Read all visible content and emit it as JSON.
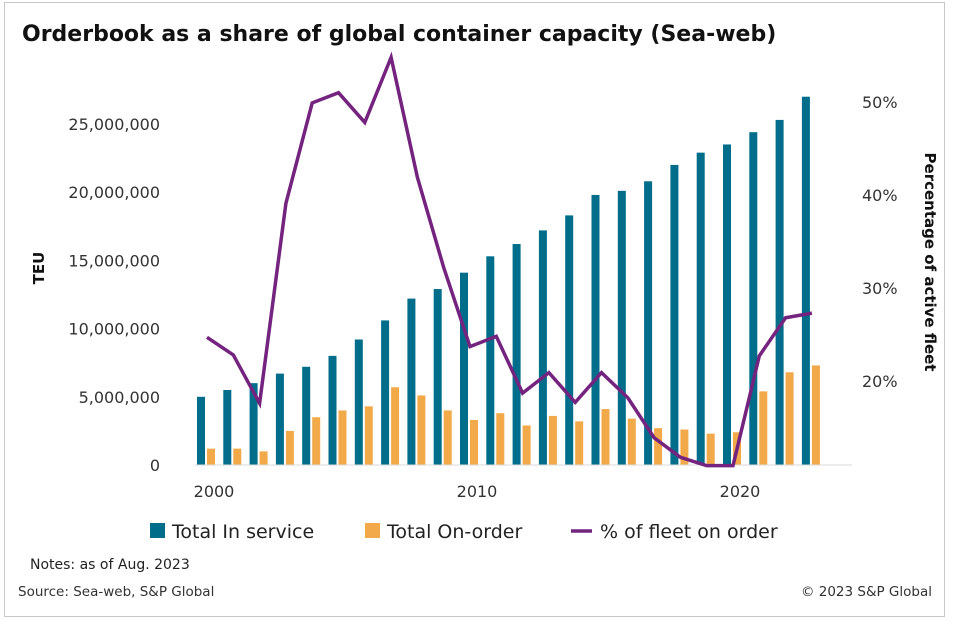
{
  "colors": {
    "in_service": "#006e8a",
    "on_order": "#f2a94a",
    "pct_line": "#74237f"
  },
  "notes": "Notes: as of Aug. 2023",
  "source": "Source: Sea-web, S&P Global",
  "copyright": "© 2023 S&P Global",
  "chart_data": {
    "type": "bar",
    "title": "Orderbook as a share of global container capacity (Sea-web)",
    "xlabel": "",
    "ylabel": "TEU",
    "y2label": "Percentage of active fleet",
    "ylim": [
      0,
      27000000
    ],
    "y2lim": [
      10,
      55
    ],
    "x": [
      2000,
      2001,
      2002,
      2003,
      2004,
      2005,
      2006,
      2007,
      2008,
      2009,
      2010,
      2011,
      2012,
      2013,
      2014,
      2015,
      2016,
      2017,
      2018,
      2019,
      2020,
      2021,
      2022,
      2023
    ],
    "x_ticks": [
      "2000",
      "2010",
      "2020"
    ],
    "x_tick_values": [
      2000,
      2010,
      2020
    ],
    "y_ticks": [
      "0",
      "5,000,000",
      "10,000,000",
      "15,000,000",
      "20,000,000",
      "25,000,000"
    ],
    "y_tick_values": [
      0,
      5000000,
      10000000,
      15000000,
      20000000,
      25000000
    ],
    "y2_ticks": [
      "20%",
      "30%",
      "40%",
      "50%"
    ],
    "y2_tick_values": [
      20,
      30,
      40,
      50
    ],
    "legend_position": "bottom",
    "series": [
      {
        "name": "Total In service",
        "type": "bar",
        "axis": "left",
        "values": [
          5000000,
          5500000,
          6000000,
          6700000,
          7200000,
          8000000,
          9200000,
          10600000,
          12200000,
          12900000,
          14100000,
          15300000,
          16200000,
          17200000,
          18300000,
          19800000,
          20100000,
          20800000,
          22000000,
          22900000,
          23500000,
          24400000,
          25300000,
          27000000
        ]
      },
      {
        "name": "Total On-order",
        "type": "bar",
        "axis": "left",
        "values": [
          1200000,
          1200000,
          1000000,
          2500000,
          3500000,
          4000000,
          4300000,
          5700000,
          5100000,
          4000000,
          3300000,
          3800000,
          2900000,
          3600000,
          3200000,
          4100000,
          3400000,
          2700000,
          2600000,
          2300000,
          2400000,
          5400000,
          6800000,
          7300000
        ]
      },
      {
        "name": "% of fleet on order",
        "type": "line",
        "axis": "right",
        "values": [
          24.7,
          22.8,
          17.6,
          39.1,
          49.9,
          51.0,
          47.8,
          54.8,
          41.9,
          32.2,
          23.7,
          24.8,
          18.7,
          20.9,
          17.7,
          20.9,
          18.2,
          13.9,
          11.8,
          10.9,
          10.9,
          22.7,
          26.8,
          27.3
        ]
      }
    ]
  }
}
